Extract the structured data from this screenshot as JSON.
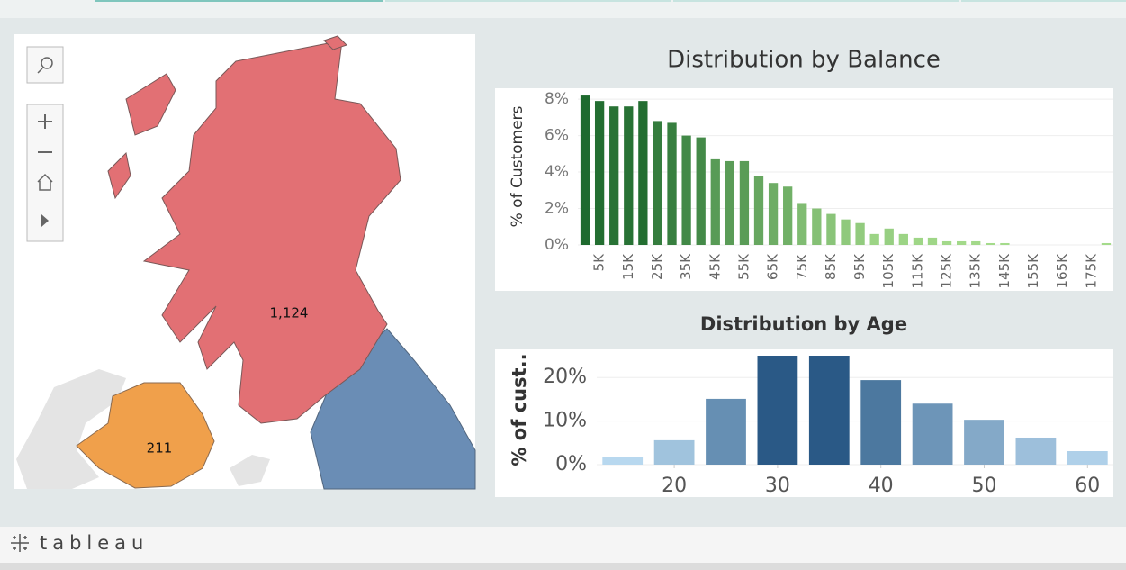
{
  "map": {
    "labels": [
      "1,124",
      "211"
    ]
  },
  "footer": {
    "logo": "tableau"
  },
  "chart_data": [
    {
      "type": "bar",
      "title": "Distribution by Balance",
      "y_label": "% of Customers",
      "categories": [
        null,
        "5K",
        null,
        "15K",
        null,
        "25K",
        null,
        "35K",
        null,
        "45K",
        null,
        "55K",
        null,
        "65K",
        null,
        "75K",
        null,
        "85K",
        null,
        "95K",
        null,
        "105K",
        null,
        "115K",
        null,
        "125K",
        null,
        "135K",
        null,
        "145K",
        null,
        "155K",
        null,
        "165K",
        null,
        "175K",
        null
      ],
      "values": [
        8.2,
        7.9,
        7.6,
        7.6,
        7.9,
        6.8,
        6.7,
        6.0,
        5.9,
        4.7,
        4.6,
        4.6,
        3.8,
        3.4,
        3.2,
        2.3,
        2.0,
        1.7,
        1.4,
        1.2,
        0.6,
        0.9,
        0.6,
        0.4,
        0.4,
        0.2,
        0.2,
        0.2,
        0.1,
        0.1,
        0,
        0,
        0,
        0,
        0,
        0,
        0.1
      ],
      "color_range": [
        "#a6dc8c",
        "#1e6a2e"
      ],
      "ylim": [
        0,
        8.5
      ],
      "yticks": [
        {
          "value": 0,
          "label": "0%"
        },
        {
          "value": 2,
          "label": "2%"
        },
        {
          "value": 4,
          "label": "4%"
        },
        {
          "value": 6,
          "label": "6%"
        },
        {
          "value": 8,
          "label": "8%"
        }
      ],
      "grid": true
    },
    {
      "type": "bar",
      "title": "Distribution by Age",
      "y_label": "% of cust..",
      "x": [
        15,
        20,
        25,
        30,
        35,
        40,
        45,
        50,
        55,
        60
      ],
      "values": [
        1.7,
        5.6,
        15.1,
        25,
        25,
        19.4,
        14.0,
        10.3,
        6.2,
        3.1
      ],
      "color_range": [
        "#b8d8ef",
        "#2a5986"
      ],
      "xlim": [
        12.5,
        62.5
      ],
      "xticks": [
        20,
        30,
        40,
        50,
        60
      ],
      "ylim": [
        0,
        25
      ],
      "yticks": [
        {
          "value": 0,
          "label": "0%"
        },
        {
          "value": 10,
          "label": "10%"
        },
        {
          "value": 20,
          "label": "20%"
        }
      ],
      "grid": true
    }
  ]
}
